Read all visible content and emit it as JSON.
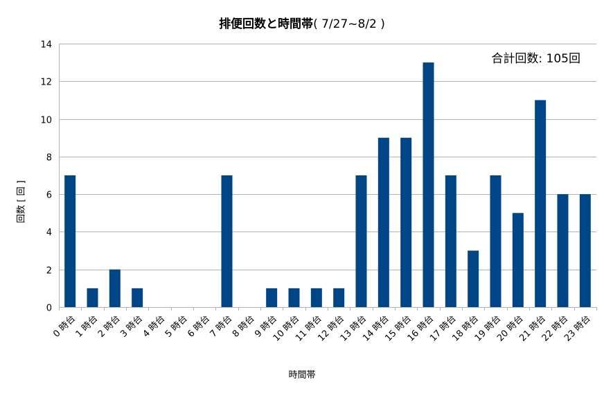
{
  "chart_data": {
    "type": "bar",
    "title": "排便回数と時間帯",
    "title_range": "( 7/27~8/2 )",
    "annotation": "合計回数: 105回",
    "xlabel": "時間帯",
    "ylabel": "回数 [ 回 ]",
    "ylim": [
      0,
      14
    ],
    "yticks": [
      0,
      2,
      4,
      6,
      8,
      10,
      12,
      14
    ],
    "grid": true,
    "legend": "none",
    "bar_color": "#004586",
    "categories": [
      "0 時台",
      "1 時台",
      "2 時台",
      "3 時台",
      "4 時台",
      "5 時台",
      "6 時台",
      "7 時台",
      "8 時台",
      "9 時台",
      "10 時台",
      "11 時台",
      "12 時台",
      "13 時台",
      "14 時台",
      "15 時台",
      "16 時台",
      "17 時台",
      "18 時台",
      "19 時台",
      "20 時台",
      "21 時台",
      "22 時台",
      "23 時台"
    ],
    "values": [
      7,
      1,
      2,
      1,
      0,
      0,
      0,
      7,
      0,
      1,
      1,
      1,
      1,
      7,
      9,
      9,
      13,
      7,
      3,
      7,
      5,
      11,
      6,
      6
    ]
  }
}
